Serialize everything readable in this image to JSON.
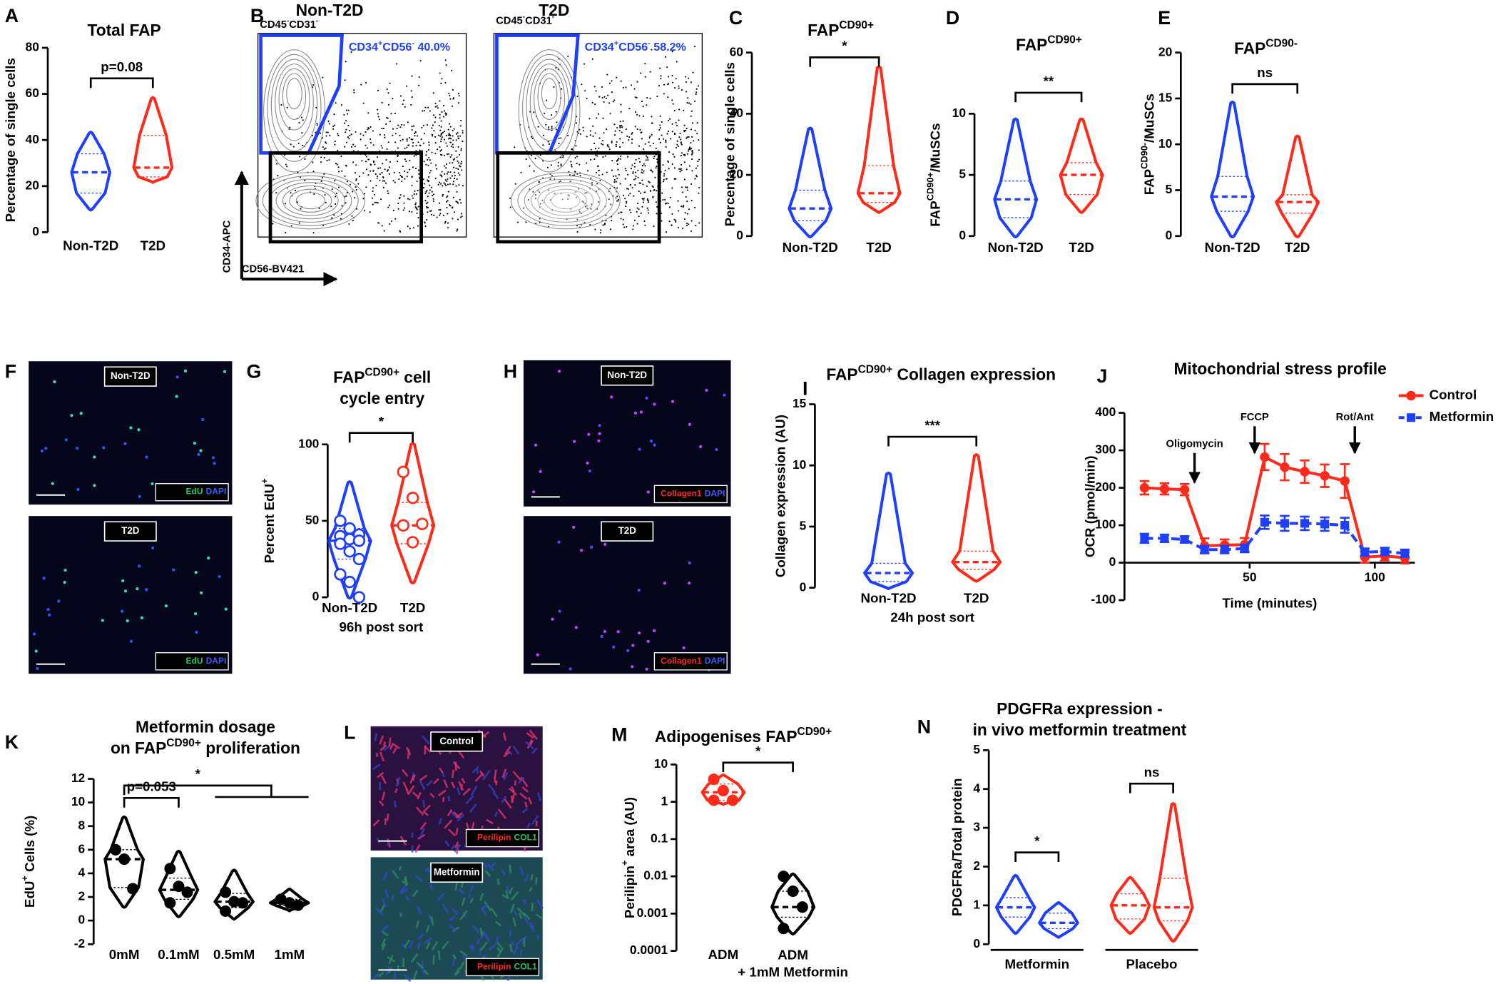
{
  "chart_data": [
    {
      "type": "violin",
      "panel": "A",
      "title": "Total FAP",
      "ylabel": "Percentage of single cells",
      "ylim": [
        0,
        80
      ],
      "yticks": [
        0,
        20,
        40,
        60,
        80
      ],
      "categories": [
        "Non-T2D",
        "T2D"
      ],
      "violins": [
        {
          "color": "#1f3fff",
          "min": 10,
          "q1": 17,
          "median": 26,
          "q3": 34,
          "max": 43
        },
        {
          "color": "#ff2a1a",
          "min": 22,
          "q1": 24,
          "median": 28,
          "q3": 42,
          "max": 58
        }
      ],
      "brackets": [
        {
          "label": "p=0.08",
          "from": 0,
          "to": 1
        }
      ]
    },
    {
      "type": "violin",
      "panel": "C",
      "title": [
        "FAP",
        {
          "sup": "CD90+"
        }
      ],
      "ylabel": "Percentage of single cells",
      "ylim": [
        0,
        60
      ],
      "yticks": [
        0,
        20,
        40,
        60
      ],
      "categories": [
        "Non-T2D",
        "T2D"
      ],
      "violins": [
        {
          "color": "#1f3fff",
          "min": 0,
          "q1": 5,
          "median": 9,
          "q3": 15,
          "max": 35
        },
        {
          "color": "#ff2a1a",
          "min": 8,
          "q1": 11,
          "median": 14,
          "q3": 23,
          "max": 55
        }
      ],
      "brackets": [
        {
          "label": "*",
          "from": 0,
          "to": 1
        }
      ]
    },
    {
      "type": "violin",
      "panel": "D",
      "title": [
        "FAP",
        {
          "sup": "CD90+"
        }
      ],
      "ylabel": [
        "FAP",
        {
          "sup": "CD90+"
        },
        "/MuSCs"
      ],
      "ylim": [
        0,
        10
      ],
      "yticks": [
        0,
        5,
        10
      ],
      "categories": [
        "Non-T2D",
        "T2D"
      ],
      "violins": [
        {
          "color": "#1f3fff",
          "min": 0,
          "q1": 1.5,
          "median": 3,
          "q3": 4.5,
          "max": 9.5
        },
        {
          "color": "#ff2a1a",
          "min": 2,
          "q1": 3.4,
          "median": 5,
          "q3": 6,
          "max": 9.5
        }
      ],
      "brackets": [
        {
          "label": "**",
          "from": 0,
          "to": 1
        }
      ]
    },
    {
      "type": "violin",
      "panel": "E",
      "title": [
        "FAP",
        {
          "sup": "CD90-"
        }
      ],
      "ylabel": [
        "FAP",
        {
          "sup": "CD90-"
        },
        "/MuSCs"
      ],
      "ylim": [
        0,
        20
      ],
      "yticks": [
        0,
        5,
        10,
        15,
        20
      ],
      "categories": [
        "Non-T2D",
        "T2D"
      ],
      "violins": [
        {
          "color": "#1f3fff",
          "min": 0,
          "q1": 2.7,
          "median": 4.3,
          "q3": 6.5,
          "max": 14.5
        },
        {
          "color": "#ff2a1a",
          "min": 0,
          "q1": 2.5,
          "median": 3.7,
          "q3": 4.5,
          "max": 10.8
        }
      ],
      "brackets": [
        {
          "label": "ns",
          "from": 0,
          "to": 1
        }
      ]
    },
    {
      "type": "violin",
      "panel": "G",
      "title": [
        [
          "FAP",
          {
            "sup": "CD90+"
          },
          " cell"
        ],
        [
          "cycle entry"
        ]
      ],
      "ylabel": [
        "Percent EdU",
        {
          "sup": "+"
        }
      ],
      "xlabel": "96h post sort",
      "ylim": [
        0,
        100
      ],
      "yticks": [
        0,
        50,
        100
      ],
      "categories": [
        "Non-T2D",
        "T2D"
      ],
      "point_style": "open",
      "violins": [
        {
          "color": "#1f3fff",
          "min": 0,
          "q1": 25,
          "median": 37,
          "q3": 45,
          "max": 75,
          "points": [
            50,
            45,
            41,
            40,
            38,
            37,
            35,
            30,
            25,
            15,
            10,
            0
          ]
        },
        {
          "color": "#ff2a1a",
          "min": 10,
          "q1": 35,
          "median": 47,
          "q3": 62,
          "max": 100,
          "points": [
            82,
            65,
            48,
            47,
            36
          ]
        }
      ],
      "brackets": [
        {
          "label": "*",
          "from": 0,
          "to": 1
        }
      ]
    },
    {
      "type": "violin",
      "panel": "I",
      "title": [
        "FAP",
        {
          "sup": "CD90+"
        },
        " Collagen expression"
      ],
      "ylabel": "Collagen expression (AU)",
      "xlabel": "24h post sort",
      "ylim": [
        0,
        15
      ],
      "yticks": [
        0,
        5,
        10,
        15
      ],
      "categories": [
        "Non-T2D",
        "T2D"
      ],
      "violins": [
        {
          "color": "#1f3fff",
          "min": 0,
          "q1": 0.5,
          "median": 1.2,
          "q3": 2,
          "max": 9.3
        },
        {
          "color": "#ff2a1a",
          "min": 0.6,
          "q1": 1.5,
          "median": 2.1,
          "q3": 3,
          "max": 10.8
        }
      ],
      "brackets": [
        {
          "label": "***",
          "from": 0,
          "to": 1
        }
      ]
    },
    {
      "type": "line",
      "panel": "J",
      "title": "Mitochondrial stress profile",
      "xlabel": "Time (minutes)",
      "ylabel": "OCR (pmol/min)",
      "xlim": [
        0,
        116
      ],
      "xticks": [
        50,
        100
      ],
      "ylim": [
        -100,
        400
      ],
      "yticks": [
        -100,
        0,
        100,
        200,
        300,
        400
      ],
      "legend": "upper right",
      "x": [
        8,
        16,
        24,
        32,
        40,
        48,
        56,
        64,
        72,
        80,
        88,
        96,
        104,
        112
      ],
      "series": [
        {
          "name": "Control",
          "color": "#ff2a1a",
          "marker": "circle",
          "dashed": false,
          "values": [
            200,
            197,
            195,
            45,
            47,
            48,
            282,
            255,
            243,
            232,
            218,
            15,
            18,
            13
          ],
          "errors": [
            18,
            15,
            15,
            20,
            15,
            18,
            35,
            35,
            30,
            30,
            45,
            15,
            12,
            15
          ]
        },
        {
          "name": "Metformin",
          "color": "#1f3fff",
          "marker": "square",
          "dashed": true,
          "values": [
            65,
            65,
            62,
            35,
            35,
            38,
            108,
            105,
            105,
            103,
            100,
            28,
            30,
            25
          ],
          "errors": [
            12,
            10,
            8,
            10,
            10,
            10,
            18,
            20,
            18,
            18,
            20,
            10,
            10,
            10
          ]
        }
      ],
      "annotations": [
        {
          "text": "Oligomycin",
          "x": 28
        },
        {
          "text": "FCCP",
          "x": 52
        },
        {
          "text": "Rot/Ant",
          "x": 92
        }
      ]
    },
    {
      "type": "violin",
      "panel": "K",
      "title": [
        [
          "Metformin dosage"
        ],
        [
          "on FAP",
          {
            "sup": "CD90+"
          },
          " proliferation"
        ]
      ],
      "ylabel": [
        "EdU",
        {
          "sup": "+"
        },
        " Cells  (%)"
      ],
      "ylim": [
        -2,
        12
      ],
      "yticks": [
        -2,
        0,
        2,
        4,
        6,
        8,
        10,
        12
      ],
      "categories": [
        "0mM",
        "0.1mM",
        "0.5mM",
        "1mM"
      ],
      "point_style": "filled",
      "violins": [
        {
          "color": "#000000",
          "min": 1.2,
          "q1": 2.8,
          "median": 5.2,
          "q3": 6,
          "max": 8.7,
          "points": [
            6,
            5.2,
            2.7
          ]
        },
        {
          "color": "#000000",
          "min": 0.4,
          "q1": 1.8,
          "median": 2.6,
          "q3": 3.6,
          "max": 5.8,
          "points": [
            4.4,
            2.9,
            2.4,
            1.5
          ]
        },
        {
          "color": "#000000",
          "min": 0.2,
          "q1": 1.1,
          "median": 1.6,
          "q3": 2.3,
          "max": 4.2,
          "points": [
            2.4,
            1.6,
            1.5,
            0.8
          ]
        },
        {
          "color": "#000000",
          "min": 0.9,
          "q1": 1.3,
          "median": 1.5,
          "q3": 1.8,
          "max": 2.6,
          "points": [
            1.8,
            1.5,
            1.3
          ]
        }
      ],
      "brackets": [
        {
          "label": "p=0.053",
          "from": 0,
          "to": 1
        },
        {
          "label": "*",
          "from": 0,
          "to": [
            2,
            3
          ]
        }
      ]
    },
    {
      "type": "violin",
      "panel": "M",
      "title": [
        "Adipogenises FAP",
        {
          "sup": "CD90+"
        }
      ],
      "ylabel": [
        "Perilipin",
        {
          "sup": "+"
        },
        " area (AU)"
      ],
      "log": true,
      "ylim": [
        0.0001,
        10
      ],
      "yticks": [
        0.0001,
        0.001,
        0.01,
        0.1,
        1,
        10
      ],
      "categories": [
        "ADM",
        [
          [
            "ADM"
          ],
          [
            "+ 1mM Metformin"
          ]
        ]
      ],
      "point_style": "filled",
      "violins": [
        {
          "color": "#ff2a1a",
          "min": 0.9,
          "q1": 1.1,
          "median": 1.8,
          "q3": 3,
          "max": 5,
          "points": [
            4,
            2,
            1.1,
            1.1
          ]
        },
        {
          "color": "#000000",
          "min": 0.0003,
          "q1": 0.0008,
          "median": 0.0015,
          "q3": 0.004,
          "max": 0.011,
          "points": [
            0.01,
            0.004,
            0.0015,
            0.0004
          ]
        }
      ],
      "brackets": [
        {
          "label": "*",
          "from": 0,
          "to": 1
        }
      ]
    },
    {
      "type": "violin",
      "panel": "N",
      "title": [
        [
          "PDGFRa expression -"
        ],
        [
          "in vivo metformin treatment"
        ]
      ],
      "ylabel": "PDGFRa/Total protein",
      "ylim": [
        0,
        5
      ],
      "yticks": [
        0,
        1,
        2,
        3,
        4,
        5
      ],
      "groups": [
        {
          "label": "Metformin",
          "members": [
            0,
            1
          ]
        },
        {
          "label": "Placebo",
          "members": [
            2,
            3
          ]
        }
      ],
      "violins": [
        {
          "color": "#1f3fff",
          "min": 0.3,
          "q1": 0.7,
          "median": 0.95,
          "q3": 1.2,
          "max": 1.75
        },
        {
          "color": "#1f3fff",
          "min": 0.2,
          "q1": 0.4,
          "median": 0.55,
          "q3": 0.8,
          "max": 1.05
        },
        {
          "color": "#ff2a1a",
          "min": 0.3,
          "q1": 0.65,
          "median": 1,
          "q3": 1.3,
          "max": 1.7
        },
        {
          "color": "#ff2a1a",
          "min": 0.1,
          "q1": 0.6,
          "median": 0.95,
          "q3": 1.7,
          "max": 3.6
        }
      ],
      "brackets": [
        {
          "label": "*",
          "from": 0,
          "to": 1
        },
        {
          "label": "ns",
          "from": 2,
          "to": 3
        }
      ]
    }
  ],
  "flow_cytometry": {
    "panel": "B",
    "y_axis": "CD34-APC",
    "x_axis": "CD56-BV421",
    "plots": [
      {
        "title": "Non-T2D",
        "parent_gate": [
          "CD45",
          {
            "sup": "-"
          },
          "CD31",
          {
            "sup": "-"
          }
        ],
        "gate_label": [
          "CD34",
          {
            "sup": "+"
          },
          "CD56",
          {
            "sup": "-"
          },
          "  40.0%"
        ]
      },
      {
        "title": "T2D",
        "parent_gate": [
          "CD45",
          {
            "sup": "-"
          },
          "CD31",
          {
            "sup": "-"
          }
        ],
        "gate_label": [
          "CD34",
          {
            "sup": "+"
          },
          "CD56",
          {
            "sup": "-"
          },
          "  58.2%"
        ]
      }
    ]
  },
  "images": [
    {
      "panel": "F",
      "tiles": [
        {
          "label": "Non-T2D",
          "stain": [
            {
              "text": "EdU",
              "color": "#22c55e"
            },
            {
              "text": "DAPI",
              "color": "#3b5bff"
            }
          ]
        },
        {
          "label": "T2D",
          "stain": [
            {
              "text": "EdU",
              "color": "#22c55e"
            },
            {
              "text": "DAPI",
              "color": "#3b5bff"
            }
          ]
        }
      ]
    },
    {
      "panel": "H",
      "tiles": [
        {
          "label": "Non-T2D",
          "stain": [
            {
              "text": "Collagen1",
              "color": "#ff2a2a"
            },
            {
              "text": "DAPI",
              "color": "#3b5bff"
            }
          ]
        },
        {
          "label": "T2D",
          "stain": [
            {
              "text": "Collagen1",
              "color": "#ff2a2a"
            },
            {
              "text": "DAPI",
              "color": "#3b5bff"
            }
          ]
        }
      ]
    },
    {
      "panel": "L",
      "tiles": [
        {
          "label": "Control",
          "stain": [
            {
              "text": "Perilipin",
              "color": "#ff2a2a"
            },
            {
              "text": "COL1",
              "color": "#22c55e"
            }
          ]
        },
        {
          "label": "Metformin",
          "stain": [
            {
              "text": "Perilipin",
              "color": "#ff2a2a"
            },
            {
              "text": "COL1",
              "color": "#22c55e"
            }
          ]
        }
      ]
    }
  ]
}
